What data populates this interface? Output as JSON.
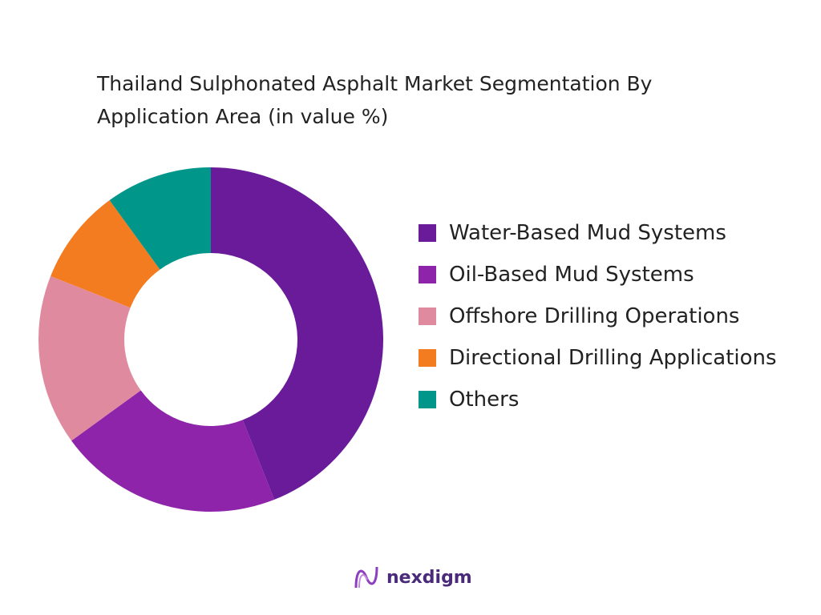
{
  "chart_data": {
    "type": "donut",
    "title": "Thailand Sulphonated Asphalt Market Segmentation By Application Area (in value %)",
    "categories": [
      "Water-Based Mud Systems",
      "Oil-Based Mud Systems",
      "Offshore Drilling Operations",
      "Directional Drilling Applications",
      "Others"
    ],
    "values": [
      44,
      21,
      16,
      9,
      10
    ],
    "colors": [
      "#6a1b9a",
      "#8e24aa",
      "#e08aa0",
      "#f47c20",
      "#00968a"
    ],
    "legend": "right"
  },
  "brand": "nexdigm"
}
